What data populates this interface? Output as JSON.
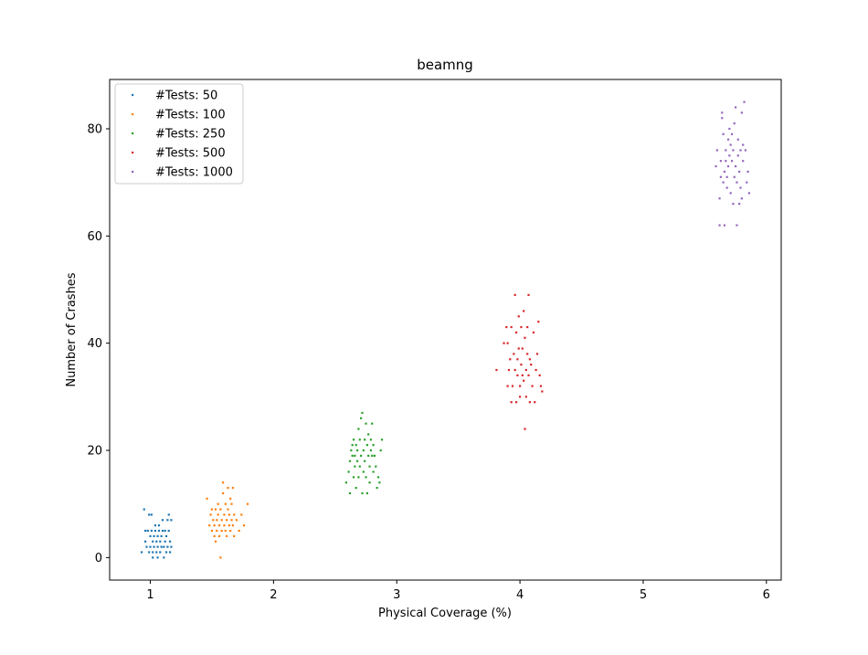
{
  "chart_data": {
    "type": "scatter",
    "title": "beamng",
    "xlabel": "Physical Coverage  (%)",
    "ylabel": "Number of Crashes",
    "xlim": [
      0.67,
      6.12
    ],
    "ylim": [
      -4.2,
      89.2
    ],
    "xticks": [
      1,
      2,
      3,
      4,
      5,
      6
    ],
    "yticks": [
      0,
      20,
      40,
      60,
      80
    ],
    "xtick_labels": [
      "1",
      "2",
      "3",
      "4",
      "5",
      "6"
    ],
    "ytick_labels": [
      "0",
      "20",
      "40",
      "60",
      "80"
    ],
    "legend_position": "upper-left",
    "series": [
      {
        "name": "#Tests: 50",
        "color": "#1f77b4",
        "points": [
          [
            0.93,
            1
          ],
          [
            0.95,
            9
          ],
          [
            0.96,
            3
          ],
          [
            0.96,
            5
          ],
          [
            0.97,
            2
          ],
          [
            0.98,
            5
          ],
          [
            0.99,
            1
          ],
          [
            0.99,
            8
          ],
          [
            1.0,
            2
          ],
          [
            1.0,
            4
          ],
          [
            1.01,
            5
          ],
          [
            1.01,
            8
          ],
          [
            1.02,
            1
          ],
          [
            1.02,
            3
          ],
          [
            1.02,
            0
          ],
          [
            1.03,
            2
          ],
          [
            1.03,
            4
          ],
          [
            1.04,
            5
          ],
          [
            1.04,
            6
          ],
          [
            1.05,
            1
          ],
          [
            1.05,
            3
          ],
          [
            1.06,
            0
          ],
          [
            1.06,
            2
          ],
          [
            1.06,
            4
          ],
          [
            1.07,
            5
          ],
          [
            1.07,
            6
          ],
          [
            1.08,
            1
          ],
          [
            1.08,
            3
          ],
          [
            1.09,
            2
          ],
          [
            1.09,
            4
          ],
          [
            1.1,
            5
          ],
          [
            1.1,
            7
          ],
          [
            1.11,
            0
          ],
          [
            1.11,
            2
          ],
          [
            1.12,
            3
          ],
          [
            1.12,
            5
          ],
          [
            1.13,
            1
          ],
          [
            1.13,
            4
          ],
          [
            1.14,
            2
          ],
          [
            1.14,
            7
          ],
          [
            1.15,
            5
          ],
          [
            1.15,
            8
          ],
          [
            1.16,
            1
          ],
          [
            1.16,
            3
          ],
          [
            1.17,
            7
          ],
          [
            1.17,
            2
          ]
        ]
      },
      {
        "name": "#Tests: 100",
        "color": "#ff7f0e",
        "points": [
          [
            1.46,
            11
          ],
          [
            1.48,
            6
          ],
          [
            1.49,
            8
          ],
          [
            1.5,
            5
          ],
          [
            1.5,
            9
          ],
          [
            1.51,
            7
          ],
          [
            1.52,
            6
          ],
          [
            1.52,
            4
          ],
          [
            1.53,
            9
          ],
          [
            1.53,
            3
          ],
          [
            1.54,
            5
          ],
          [
            1.54,
            7
          ],
          [
            1.55,
            8
          ],
          [
            1.55,
            10
          ],
          [
            1.56,
            6
          ],
          [
            1.56,
            4
          ],
          [
            1.57,
            9
          ],
          [
            1.57,
            0
          ],
          [
            1.58,
            5
          ],
          [
            1.58,
            7
          ],
          [
            1.59,
            12
          ],
          [
            1.59,
            14
          ],
          [
            1.6,
            8
          ],
          [
            1.6,
            6
          ],
          [
            1.61,
            10
          ],
          [
            1.61,
            5
          ],
          [
            1.62,
            7
          ],
          [
            1.62,
            4
          ],
          [
            1.63,
            9
          ],
          [
            1.63,
            13
          ],
          [
            1.64,
            6
          ],
          [
            1.64,
            8
          ],
          [
            1.65,
            11
          ],
          [
            1.65,
            5
          ],
          [
            1.66,
            7
          ],
          [
            1.66,
            10
          ],
          [
            1.67,
            6
          ],
          [
            1.67,
            13
          ],
          [
            1.68,
            4
          ],
          [
            1.68,
            8
          ],
          [
            1.7,
            7
          ],
          [
            1.72,
            5
          ],
          [
            1.74,
            8
          ],
          [
            1.76,
            6
          ],
          [
            1.79,
            10
          ]
        ]
      },
      {
        "name": "#Tests: 250",
        "color": "#2ca02c",
        "points": [
          [
            2.59,
            14
          ],
          [
            2.61,
            16
          ],
          [
            2.62,
            12
          ],
          [
            2.62,
            18
          ],
          [
            2.63,
            20
          ],
          [
            2.64,
            19
          ],
          [
            2.64,
            21
          ],
          [
            2.65,
            22
          ],
          [
            2.65,
            15
          ],
          [
            2.66,
            17
          ],
          [
            2.66,
            19
          ],
          [
            2.67,
            13
          ],
          [
            2.67,
            21
          ],
          [
            2.68,
            18
          ],
          [
            2.68,
            20
          ],
          [
            2.69,
            24
          ],
          [
            2.69,
            15
          ],
          [
            2.7,
            22
          ],
          [
            2.7,
            17
          ],
          [
            2.71,
            26
          ],
          [
            2.71,
            19
          ],
          [
            2.72,
            12
          ],
          [
            2.72,
            27
          ],
          [
            2.73,
            20
          ],
          [
            2.73,
            16
          ],
          [
            2.74,
            22
          ],
          [
            2.74,
            18
          ],
          [
            2.75,
            15
          ],
          [
            2.75,
            25
          ],
          [
            2.76,
            12
          ],
          [
            2.76,
            21
          ],
          [
            2.77,
            19
          ],
          [
            2.77,
            23
          ],
          [
            2.78,
            14
          ],
          [
            2.78,
            17
          ],
          [
            2.79,
            20
          ],
          [
            2.79,
            22
          ],
          [
            2.8,
            19
          ],
          [
            2.8,
            25
          ],
          [
            2.81,
            21
          ],
          [
            2.81,
            16
          ],
          [
            2.82,
            19
          ],
          [
            2.83,
            17
          ],
          [
            2.84,
            13
          ],
          [
            2.85,
            15
          ],
          [
            2.86,
            14
          ],
          [
            2.87,
            20
          ],
          [
            2.88,
            22
          ]
        ]
      },
      {
        "name": "#Tests: 500",
        "color": "#d62728",
        "points": [
          [
            3.81,
            35
          ],
          [
            3.87,
            40
          ],
          [
            3.89,
            43
          ],
          [
            3.9,
            32
          ],
          [
            3.9,
            40
          ],
          [
            3.91,
            35
          ],
          [
            3.92,
            37
          ],
          [
            3.93,
            29
          ],
          [
            3.93,
            43
          ],
          [
            3.94,
            32
          ],
          [
            3.95,
            38
          ],
          [
            3.96,
            35
          ],
          [
            3.96,
            49
          ],
          [
            3.97,
            29
          ],
          [
            3.97,
            42
          ],
          [
            3.98,
            34
          ],
          [
            3.98,
            37
          ],
          [
            3.99,
            39
          ],
          [
            3.99,
            45
          ],
          [
            4.0,
            32
          ],
          [
            4.0,
            30
          ],
          [
            4.01,
            36
          ],
          [
            4.01,
            43
          ],
          [
            4.02,
            34
          ],
          [
            4.02,
            39
          ],
          [
            4.03,
            46
          ],
          [
            4.03,
            33
          ],
          [
            4.04,
            41
          ],
          [
            4.04,
            24
          ],
          [
            4.05,
            30
          ],
          [
            4.05,
            35
          ],
          [
            4.06,
            38
          ],
          [
            4.06,
            43
          ],
          [
            4.07,
            49
          ],
          [
            4.07,
            34
          ],
          [
            4.08,
            29
          ],
          [
            4.08,
            37
          ],
          [
            4.09,
            36
          ],
          [
            4.1,
            32
          ],
          [
            4.11,
            42
          ],
          [
            4.12,
            29
          ],
          [
            4.13,
            35
          ],
          [
            4.14,
            38
          ],
          [
            4.15,
            44
          ],
          [
            4.16,
            34
          ],
          [
            4.17,
            32
          ],
          [
            4.18,
            31
          ]
        ]
      },
      {
        "name": "#Tests: 1000",
        "color": "#9467bd",
        "points": [
          [
            5.59,
            73
          ],
          [
            5.6,
            76
          ],
          [
            5.62,
            62
          ],
          [
            5.62,
            67
          ],
          [
            5.63,
            71
          ],
          [
            5.63,
            74
          ],
          [
            5.64,
            83
          ],
          [
            5.64,
            82
          ],
          [
            5.65,
            70
          ],
          [
            5.65,
            79
          ],
          [
            5.66,
            62
          ],
          [
            5.66,
            72
          ],
          [
            5.67,
            74
          ],
          [
            5.67,
            76
          ],
          [
            5.68,
            71
          ],
          [
            5.68,
            69
          ],
          [
            5.69,
            73
          ],
          [
            5.69,
            78
          ],
          [
            5.7,
            75
          ],
          [
            5.7,
            80
          ],
          [
            5.71,
            77
          ],
          [
            5.71,
            68
          ],
          [
            5.72,
            74
          ],
          [
            5.72,
            79
          ],
          [
            5.73,
            66
          ],
          [
            5.73,
            76
          ],
          [
            5.74,
            71
          ],
          [
            5.74,
            81
          ],
          [
            5.75,
            73
          ],
          [
            5.75,
            84
          ],
          [
            5.76,
            62
          ],
          [
            5.76,
            70
          ],
          [
            5.77,
            75
          ],
          [
            5.77,
            78
          ],
          [
            5.78,
            66
          ],
          [
            5.78,
            72
          ],
          [
            5.79,
            76
          ],
          [
            5.79,
            69
          ],
          [
            5.8,
            67
          ],
          [
            5.8,
            83
          ],
          [
            5.81,
            77
          ],
          [
            5.81,
            74
          ],
          [
            5.82,
            85
          ],
          [
            5.83,
            76
          ],
          [
            5.84,
            70
          ],
          [
            5.85,
            72
          ],
          [
            5.86,
            68
          ]
        ]
      }
    ]
  }
}
